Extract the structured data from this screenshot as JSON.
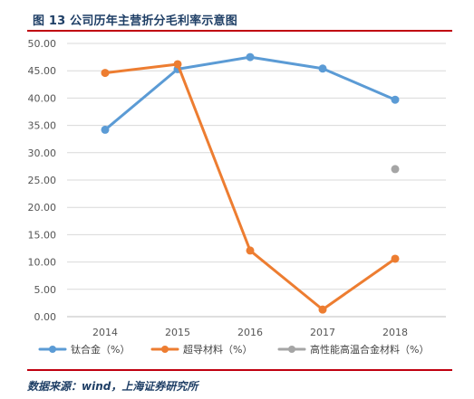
{
  "header": {
    "title": "图 13 公司历年主营折分毛利率示意图"
  },
  "footer": {
    "source": "数据来源：wind，上海证券研究所"
  },
  "colors": {
    "rule": "#c0000f",
    "text_accent": "#1f3f66"
  },
  "chart_data": {
    "type": "line",
    "title": "",
    "xlabel": "",
    "ylabel": "",
    "categories": [
      "2014",
      "2015",
      "2016",
      "2017",
      "2018"
    ],
    "ylim": [
      0,
      50
    ],
    "ytick_step": 5,
    "ytick_format": "0.00",
    "grid": "horizontal",
    "legend_position": "bottom",
    "series": [
      {
        "name": "钛合金（%）",
        "color": "#5b9bd5",
        "values": [
          34.2,
          45.3,
          47.5,
          45.4,
          39.7
        ]
      },
      {
        "name": "超导材料（%）",
        "color": "#ed7d31",
        "values": [
          44.6,
          46.2,
          12.1,
          1.3,
          10.6
        ]
      },
      {
        "name": "高性能高温合金材料（%）",
        "color": "#a5a5a5",
        "values": [
          null,
          null,
          null,
          null,
          27.0
        ]
      }
    ]
  }
}
